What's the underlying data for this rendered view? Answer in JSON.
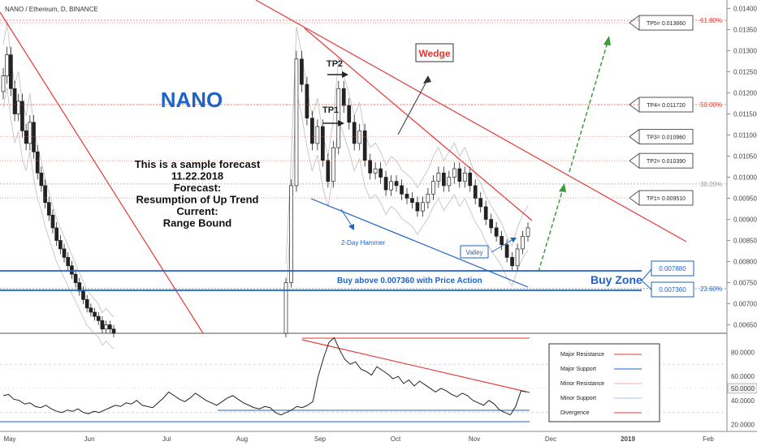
{
  "symbol_title": "NANO / Ethereum, D, BINANCE",
  "headline": "NANO",
  "forecast_lines": [
    "This is a sample forecast",
    "11.22.2018",
    "Forecast:",
    "Resumption of Up Trend",
    "Current:",
    "Range Bound"
  ],
  "wedge_label": "Wedge",
  "tp_arrow_labels": [
    "TP2",
    "TP1"
  ],
  "hammer_label": "2-Day Hammer",
  "valley_label": "Valley",
  "buy_text": "Buy above 0.007360 with Price Action",
  "buy_zone_label": "Buy Zone",
  "chart_data": {
    "type": "candlestick",
    "price_axis_ticks": [
      "0.014000",
      "0.013500",
      "0.013000",
      "0.012500",
      "0.012000",
      "0.011500",
      "0.011000",
      "0.010500",
      "0.010000",
      "0.009500",
      "0.009000",
      "0.008500",
      "0.008000",
      "0.007500",
      "0.007000",
      "0.006500"
    ],
    "price_range": [
      0.0063,
      0.0142
    ],
    "time_axis": [
      "May",
      "Jun",
      "Jul",
      "Aug",
      "Sep",
      "Oct",
      "Nov",
      "Dec",
      "2019",
      "Feb"
    ],
    "fib_levels": [
      {
        "label": "61.80%",
        "price": 0.01372,
        "color": "#e53935"
      },
      {
        "label": "50.00%",
        "price": 0.01172,
        "color": "#e53935"
      },
      {
        "label": "38.20%",
        "price": 0.00984,
        "color": "#9e9e9e"
      },
      {
        "label": "23.60%",
        "price": 0.00736,
        "color": "#1e63c8"
      }
    ],
    "targets": [
      {
        "label": "TP5= 0.013660",
        "price": 0.01366
      },
      {
        "label": "TP4= 0.011720",
        "price": 0.01172
      },
      {
        "label": "TP3= 0.010960",
        "price": 0.01096
      },
      {
        "label": "TP2= 0.010390",
        "price": 0.01039
      },
      {
        "label": "TP1= 0.009510",
        "price": 0.00951
      }
    ],
    "buy_zone": {
      "upper_label": "0.007880",
      "lower_label": "0.007360",
      "upper": 0.00788,
      "lower": 0.00736
    },
    "series": [
      {
        "name": "NANO/ETH",
        "close": [
          0.0124,
          0.0129,
          0.0121,
          0.0115,
          0.0118,
          0.0111,
          0.0108,
          0.0113,
          0.0106,
          0.0101,
          0.0098,
          0.0094,
          0.0091,
          0.0088,
          0.0085,
          0.0083,
          0.0081,
          0.0079,
          0.0077,
          0.0075,
          0.0073,
          0.0071,
          0.0069,
          0.0068,
          0.0067,
          0.0066,
          0.0064,
          0.0065,
          0.0064,
          0.0063,
          0.0075,
          0.0098,
          0.0128,
          0.0122,
          0.0114,
          0.0108,
          0.0112,
          0.0104,
          0.0099,
          0.0107,
          0.0121,
          0.0117,
          0.0113,
          0.0108,
          0.0111,
          0.0104,
          0.0101,
          0.0102,
          0.01,
          0.0097,
          0.0099,
          0.0098,
          0.0096,
          0.0095,
          0.0094,
          0.0092,
          0.0094,
          0.0096,
          0.0099,
          0.0101,
          0.0098,
          0.01,
          0.0102,
          0.0099,
          0.0101,
          0.0098,
          0.0095,
          0.0093,
          0.009,
          0.0088,
          0.0086,
          0.0084,
          0.0081,
          0.0079,
          0.0083,
          0.0086,
          0.0088
        ]
      }
    ],
    "indicator": {
      "ticks": [
        "80.0000",
        "60.0000",
        "50.0000",
        "40.0000",
        "20.0000"
      ],
      "range": [
        15,
        95
      ],
      "current_label": "50.0000",
      "values": [
        44,
        45,
        41,
        40,
        37,
        38,
        35,
        34,
        36,
        33,
        31,
        30,
        32,
        31,
        33,
        30,
        29,
        31,
        30,
        32,
        34,
        36,
        35,
        38,
        37,
        40,
        36,
        35,
        34,
        38,
        42,
        47,
        44,
        41,
        39,
        42,
        46,
        43,
        40,
        38,
        36,
        39,
        42,
        44,
        41,
        38,
        36,
        34,
        33,
        35,
        34,
        30,
        28,
        30,
        32,
        35,
        34,
        36,
        39,
        60,
        75,
        88,
        92,
        82,
        74,
        70,
        72,
        66,
        64,
        61,
        68,
        65,
        62,
        58,
        60,
        54,
        57,
        52,
        56,
        53,
        50,
        47,
        50,
        48,
        45,
        43,
        46,
        44,
        40,
        38,
        36,
        40,
        37,
        32,
        30,
        28,
        35,
        48,
        47
      ]
    },
    "legend": [
      {
        "label": "Major Resistance",
        "color": "#e53935"
      },
      {
        "label": "Major Support",
        "color": "#1e63c8"
      },
      {
        "label": "Minor Resistance",
        "color": "#f2a8a8"
      },
      {
        "label": "Minor Support",
        "color": "#a8c4ec"
      },
      {
        "label": "Divergence",
        "color": "#e53935"
      }
    ]
  }
}
